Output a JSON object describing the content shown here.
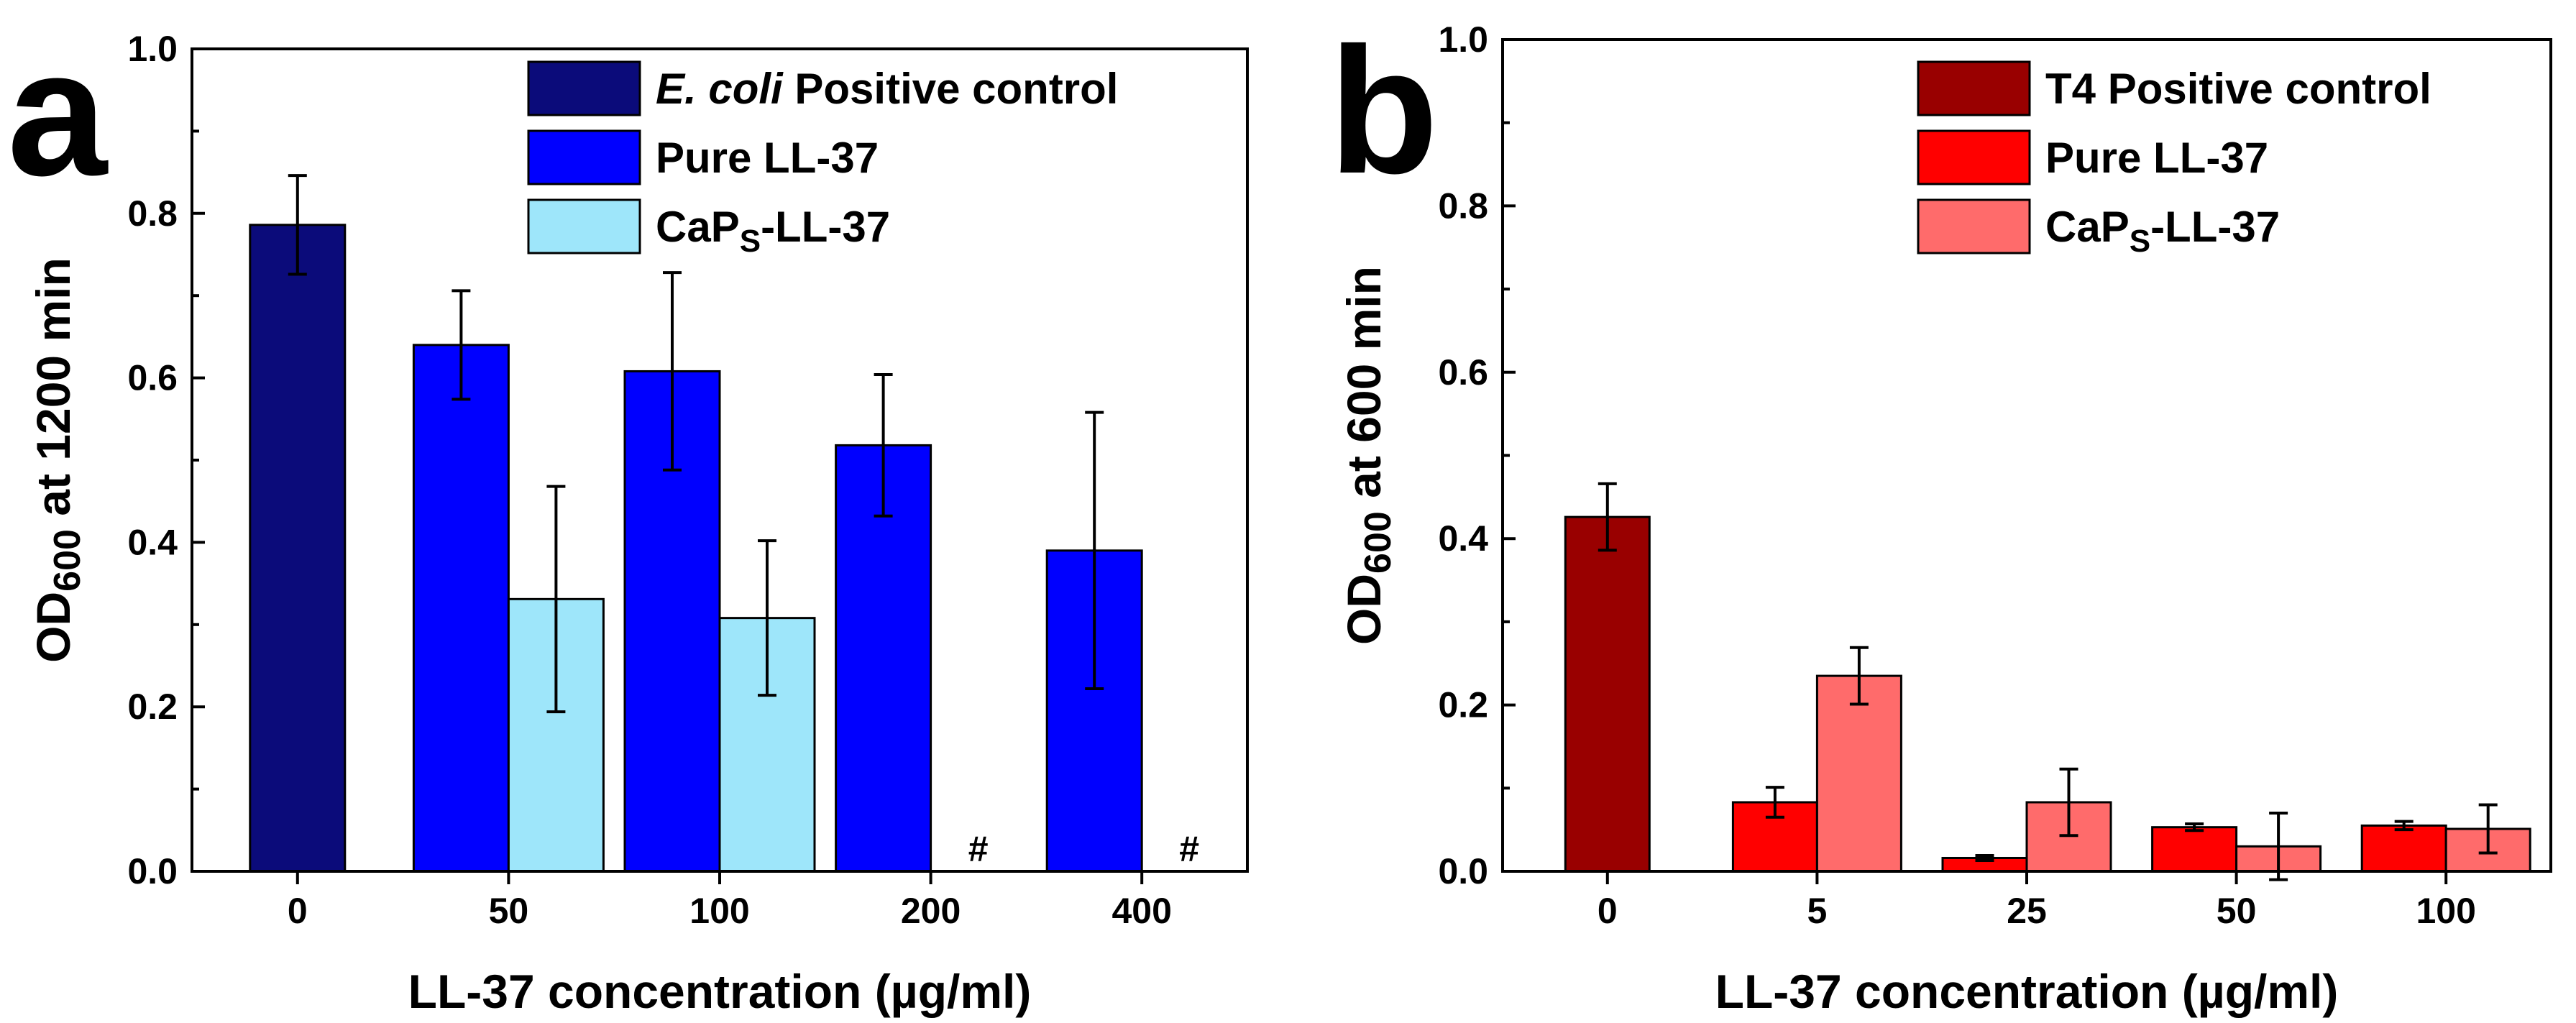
{
  "chart_data": [
    {
      "type": "bar",
      "panel_label": "a",
      "xlabel": "LL-37 concentration (µg/ml)",
      "ylabel_main": "OD",
      "ylabel_sub": "600",
      "ylabel_rest": " at 1200 min",
      "ylim": [
        0,
        1.0
      ],
      "yticks": [
        "0.0",
        "0.2",
        "0.4",
        "0.6",
        "0.8",
        "1.0"
      ],
      "categories": [
        "0",
        "50",
        "100",
        "200",
        "400"
      ],
      "legend_position": "top-right",
      "series": [
        {
          "name_parts": {
            "italic": "E. coli",
            "rest": " Positive control"
          },
          "name": "E. coli Positive control",
          "color": "#0b0b7a",
          "values": [
            0.786,
            null,
            null,
            null,
            null
          ],
          "errors": [
            0.06,
            null,
            null,
            null,
            null
          ]
        },
        {
          "name": "Pure LL-37",
          "color": "#0000ff",
          "values": [
            null,
            0.64,
            0.608,
            0.518,
            0.39
          ],
          "errors": [
            null,
            0.066,
            0.12,
            0.086,
            0.168
          ]
        },
        {
          "name_parts": {
            "main": "CaP",
            "sub": "S",
            "rest": "-LL-37"
          },
          "name": "CaPS-LL-37",
          "color": "#9ee6fa",
          "values": [
            null,
            0.331,
            0.308,
            0,
            0
          ],
          "errors": [
            null,
            0.137,
            0.094,
            null,
            null
          ],
          "markers": [
            null,
            null,
            null,
            "#",
            "#"
          ]
        }
      ]
    },
    {
      "type": "bar",
      "panel_label": "b",
      "xlabel": "LL-37 concentration (µg/ml)",
      "ylabel_main": "OD",
      "ylabel_sub": "600",
      "ylabel_rest": " at 600 min",
      "ylim": [
        0,
        1.0
      ],
      "yticks": [
        "0.0",
        "0.2",
        "0.4",
        "0.6",
        "0.8",
        "1.0"
      ],
      "categories": [
        "0",
        "5",
        "25",
        "50",
        "100"
      ],
      "legend_position": "top-right",
      "series": [
        {
          "name": "T4 Positive control",
          "color": "#990000",
          "values": [
            0.426,
            null,
            null,
            null,
            null
          ],
          "errors": [
            0.04,
            null,
            null,
            null,
            null
          ]
        },
        {
          "name": "Pure LL-37",
          "color": "#ff0000",
          "values": [
            null,
            0.083,
            0.016,
            0.053,
            0.055
          ],
          "errors": [
            null,
            0.018,
            0.003,
            0.004,
            0.005
          ]
        },
        {
          "name_parts": {
            "main": "CaP",
            "sub": "S",
            "rest": "-LL-37"
          },
          "name": "CaPS-LL-37",
          "color": "#ff6b6b",
          "values": [
            null,
            0.235,
            0.083,
            0.03,
            0.051
          ],
          "errors": [
            null,
            0.034,
            0.04,
            0.04,
            0.029
          ]
        }
      ]
    }
  ]
}
